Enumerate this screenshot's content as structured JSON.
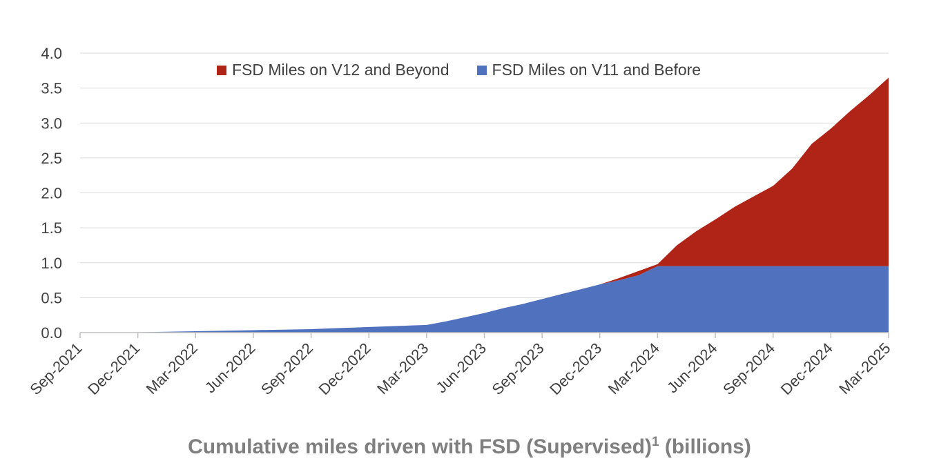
{
  "chart_data": {
    "type": "area",
    "stacked": true,
    "title": "Cumulative miles driven with FSD (Supervised)",
    "title_superscript": "1",
    "title_suffix": " (billions)",
    "xlabel": "",
    "ylabel": "",
    "ylim": [
      0,
      4
    ],
    "y_ticks": [
      "0.0",
      "0.5",
      "1.0",
      "1.5",
      "2.0",
      "2.5",
      "3.0",
      "3.5",
      "4.0"
    ],
    "x": [
      "Sep-2021",
      "Oct-2021",
      "Nov-2021",
      "Dec-2021",
      "Jan-2022",
      "Feb-2022",
      "Mar-2022",
      "Apr-2022",
      "May-2022",
      "Jun-2022",
      "Jul-2022",
      "Aug-2022",
      "Sep-2022",
      "Oct-2022",
      "Nov-2022",
      "Dec-2022",
      "Jan-2023",
      "Feb-2023",
      "Mar-2023",
      "Apr-2023",
      "May-2023",
      "Jun-2023",
      "Jul-2023",
      "Aug-2023",
      "Sep-2023",
      "Oct-2023",
      "Nov-2023",
      "Dec-2023",
      "Jan-2024",
      "Feb-2024",
      "Mar-2024",
      "Apr-2024",
      "May-2024",
      "Jun-2024",
      "Jul-2024",
      "Aug-2024",
      "Sep-2024",
      "Oct-2024",
      "Nov-2024",
      "Dec-2024",
      "Jan-2025",
      "Feb-2025",
      "Mar-2025"
    ],
    "x_tick_labels": [
      "Sep-2021",
      "Dec-2021",
      "Mar-2022",
      "Jun-2022",
      "Sep-2022",
      "Dec-2022",
      "Mar-2023",
      "Jun-2023",
      "Sep-2023",
      "Dec-2023",
      "Mar-2024",
      "Jun-2024",
      "Sep-2024",
      "Dec-2024",
      "Mar-2025"
    ],
    "series": [
      {
        "name": "FSD Miles on V11 and Before",
        "color": "#4f71be",
        "values": [
          0,
          0,
          0,
          0.005,
          0.01,
          0.015,
          0.02,
          0.025,
          0.03,
          0.035,
          0.04,
          0.045,
          0.05,
          0.06,
          0.07,
          0.08,
          0.09,
          0.1,
          0.11,
          0.16,
          0.22,
          0.28,
          0.35,
          0.41,
          0.48,
          0.55,
          0.62,
          0.69,
          0.75,
          0.82,
          0.95,
          0.95,
          0.95,
          0.95,
          0.95,
          0.95,
          0.95,
          0.95,
          0.95,
          0.95,
          0.95,
          0.95,
          0.95
        ]
      },
      {
        "name": "FSD Miles on V12 and Beyond",
        "color": "#b02418",
        "values": [
          0,
          0,
          0,
          0,
          0,
          0,
          0,
          0,
          0,
          0,
          0,
          0,
          0,
          0,
          0,
          0,
          0,
          0,
          0,
          0,
          0,
          0,
          0,
          0,
          0,
          0,
          0,
          0,
          0.03,
          0.06,
          0.03,
          0.3,
          0.5,
          0.67,
          0.85,
          1.0,
          1.15,
          1.4,
          1.75,
          1.97,
          2.22,
          2.45,
          2.7
        ]
      }
    ],
    "legend": {
      "position": "top-center",
      "entries": [
        "FSD Miles on V12 and Beyond",
        "FSD Miles on V11 and Before"
      ]
    },
    "grid": true
  }
}
